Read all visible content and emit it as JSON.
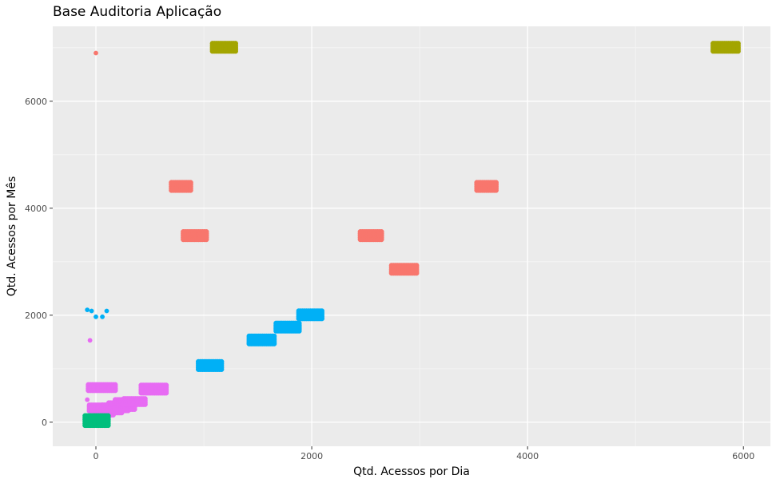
{
  "chart_data": {
    "type": "scatter",
    "title": "Base Auditoria Aplicação",
    "xlabel": "Qtd. Acessos por Dia",
    "ylabel": "Qtd. Acessos por Mês",
    "xlim": [
      -400,
      6250
    ],
    "ylim": [
      -450,
      7400
    ],
    "x_ticks": [
      0,
      2000,
      4000,
      6000
    ],
    "y_ticks": [
      0,
      2000,
      4000,
      6000
    ],
    "x_tick_labels": [
      "0",
      "2000",
      "4000",
      "6000"
    ],
    "y_tick_labels": [
      "0",
      "2000",
      "4000",
      "6000"
    ],
    "grid": true,
    "legend": "none",
    "series": [
      {
        "color": "#F8766D",
        "clusters": [
          {
            "x": [
              700,
              880
            ],
            "y": [
              4330,
              4480
            ]
          },
          {
            "x": [
              3530,
              3720
            ],
            "y": [
              4330,
              4480
            ]
          },
          {
            "x": [
              810,
              1030
            ],
            "y": [
              3400,
              3560
            ]
          },
          {
            "x": [
              2450,
              2660
            ],
            "y": [
              3400,
              3560
            ]
          },
          {
            "x": [
              2740,
              2980
            ],
            "y": [
              2780,
              2930
            ]
          }
        ],
        "points": [
          [
            0,
            6900
          ]
        ]
      },
      {
        "color": "#A3A500",
        "clusters": [
          {
            "x": [
              1080,
              1300
            ],
            "y": [
              6920,
              7080
            ]
          },
          {
            "x": [
              5720,
              5960
            ],
            "y": [
              6920,
              7080
            ]
          }
        ],
        "points": []
      },
      {
        "color": "#00B0F6",
        "clusters": [
          {
            "x": [
              950,
              1180
            ],
            "y": [
              980,
              1130
            ]
          },
          {
            "x": [
              1420,
              1660
            ],
            "y": [
              1450,
              1610
            ]
          },
          {
            "x": [
              1670,
              1900
            ],
            "y": [
              1690,
              1850
            ]
          },
          {
            "x": [
              1880,
              2110
            ],
            "y": [
              1920,
              2080
            ]
          }
        ],
        "points": [
          [
            -80,
            2100
          ],
          [
            -40,
            2080
          ],
          [
            0,
            1970
          ],
          [
            60,
            1970
          ],
          [
            100,
            2080
          ]
        ]
      },
      {
        "color": "#E76BF3",
        "clusters": [
          {
            "x": [
              420,
              660
            ],
            "y": [
              520,
              690
            ]
          },
          {
            "x": [
              -70,
              180
            ],
            "y": [
              580,
              700
            ]
          },
          {
            "x": [
              -60,
              100
            ],
            "y": [
              180,
              320
            ]
          },
          {
            "x": [
              0,
              160
            ],
            "y": [
              120,
              280
            ]
          },
          {
            "x": [
              60,
              240
            ],
            "y": [
              150,
              320
            ]
          },
          {
            "x": [
              120,
              300
            ],
            "y": [
              200,
              360
            ]
          },
          {
            "x": [
              180,
              370
            ],
            "y": [
              240,
              420
            ]
          },
          {
            "x": [
              260,
              460
            ],
            "y": [
              300,
              440
            ]
          }
        ],
        "points": [
          [
            -55,
            1530
          ],
          [
            -80,
            420
          ],
          [
            -90,
            80
          ],
          [
            -85,
            30
          ]
        ]
      },
      {
        "color": "#00BF7D",
        "clusters": [
          {
            "x": [
              -100,
              120
            ],
            "y": [
              -80,
              120
            ]
          }
        ],
        "points": []
      }
    ]
  }
}
